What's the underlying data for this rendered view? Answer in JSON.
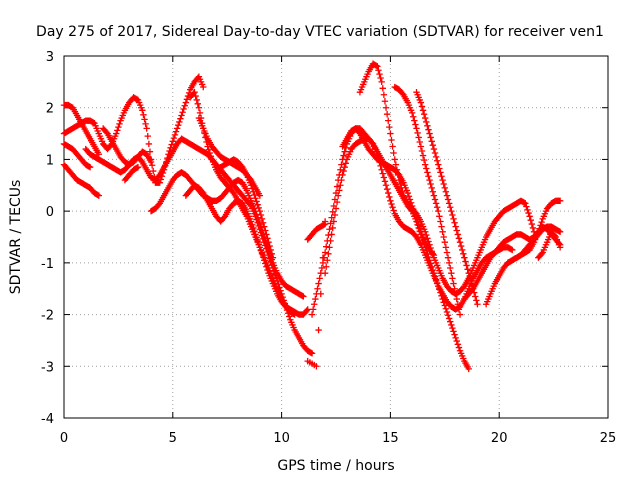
{
  "chart_data": {
    "type": "scatter",
    "title": "Day 275 of 2017, Sidereal Day-to-day VTEC variation (SDTVAR) for receiver ven1",
    "xlabel": "GPS time / hours",
    "ylabel": "SDTVAR / TECUs",
    "xlim": [
      0,
      25
    ],
    "ylim": [
      -4,
      3
    ],
    "xticks": [
      0,
      5,
      10,
      15,
      20,
      25
    ],
    "yticks": [
      -4,
      -3,
      -2,
      -1,
      0,
      1,
      2,
      3
    ],
    "grid": true,
    "marker": "+",
    "color": "#ff0000",
    "series": [
      {
        "x": [
          0.0,
          0.2,
          0.4,
          0.6,
          0.8,
          1.0,
          1.2,
          1.4,
          1.6,
          1.8,
          2.0,
          2.2,
          2.4,
          2.6,
          2.8,
          3.0,
          3.2,
          3.4,
          3.6,
          3.8,
          4.0,
          4.2,
          4.4,
          4.6,
          4.8,
          5.0,
          5.2,
          5.4,
          5.6,
          5.8,
          6.0,
          6.2,
          6.4
        ],
        "y": [
          1.5,
          1.55,
          1.6,
          1.65,
          1.7,
          1.75,
          1.75,
          1.7,
          1.5,
          1.3,
          1.2,
          1.3,
          1.5,
          1.75,
          1.95,
          2.1,
          2.2,
          2.15,
          1.95,
          1.6,
          1.0,
          0.55,
          0.55,
          0.8,
          1.1,
          1.35,
          1.6,
          1.85,
          2.1,
          2.35,
          2.5,
          2.6,
          2.4
        ]
      },
      {
        "x": [
          0.0,
          0.2,
          0.4,
          0.6,
          0.8,
          1.0,
          1.2,
          1.4,
          1.6
        ],
        "y": [
          2.05,
          2.05,
          2.0,
          1.85,
          1.7,
          1.55,
          1.4,
          1.25,
          1.1
        ]
      },
      {
        "x": [
          0.0,
          0.2,
          0.4,
          0.6,
          0.8,
          1.0,
          1.2,
          1.4,
          1.6
        ],
        "y": [
          0.9,
          0.8,
          0.7,
          0.6,
          0.55,
          0.5,
          0.45,
          0.35,
          0.3
        ]
      },
      {
        "x": [
          0.0,
          0.2,
          0.4,
          0.6,
          0.8,
          1.0,
          1.2
        ],
        "y": [
          1.3,
          1.25,
          1.2,
          1.1,
          1.0,
          0.9,
          0.85
        ]
      },
      {
        "x": [
          1.0,
          1.2,
          1.4,
          1.6,
          1.8,
          2.0,
          2.2,
          2.4,
          2.6,
          2.8,
          3.0,
          3.2,
          3.4,
          3.6,
          3.8,
          4.0,
          4.2,
          4.4,
          4.6,
          4.8,
          5.0,
          5.2,
          5.4,
          5.6,
          5.8,
          6.0,
          6.2,
          6.4,
          6.6,
          6.8,
          7.0,
          7.2,
          7.4,
          7.6,
          7.8,
          8.0,
          8.2,
          8.4,
          8.6,
          8.8,
          9.0,
          9.2,
          9.4,
          9.6,
          9.8,
          10.0,
          10.2,
          10.4,
          10.6,
          10.8,
          11.0,
          11.2,
          11.4
        ],
        "y": [
          1.2,
          1.1,
          1.05,
          1.0,
          0.95,
          0.9,
          0.85,
          0.8,
          0.75,
          0.8,
          0.9,
          1.0,
          1.05,
          0.95,
          0.8,
          0.65,
          0.6,
          0.7,
          0.85,
          1.0,
          1.15,
          1.3,
          1.4,
          1.35,
          1.3,
          1.25,
          1.2,
          1.15,
          1.1,
          1.0,
          0.9,
          0.8,
          0.7,
          0.6,
          0.5,
          0.4,
          0.3,
          0.2,
          0.1,
          -0.1,
          -0.35,
          -0.6,
          -0.85,
          -1.1,
          -1.35,
          -1.6,
          -1.85,
          -2.1,
          -2.3,
          -2.45,
          -2.6,
          -2.7,
          -2.75
        ]
      },
      {
        "x": [
          1.8,
          2.0,
          2.2,
          2.4,
          2.6,
          2.8,
          3.0,
          3.2,
          3.4,
          3.6,
          3.8,
          4.0
        ],
        "y": [
          1.6,
          1.5,
          1.35,
          1.2,
          1.05,
          0.95,
          0.9,
          0.95,
          1.05,
          1.15,
          1.1,
          0.95
        ]
      },
      {
        "x": [
          2.8,
          3.0,
          3.2,
          3.4
        ],
        "y": [
          0.6,
          0.7,
          0.8,
          0.85
        ]
      },
      {
        "x": [
          4.0,
          4.2,
          4.4,
          4.6,
          4.8,
          5.0,
          5.2,
          5.4,
          5.6,
          5.8,
          6.0,
          6.2,
          6.4,
          6.6,
          6.8,
          7.0,
          7.2,
          7.4,
          7.6,
          7.8,
          8.0,
          8.2,
          8.4,
          8.6,
          8.8,
          9.0,
          9.2,
          9.4,
          9.6,
          9.8,
          10.0,
          10.2,
          10.4,
          10.6,
          10.8,
          11.0
        ],
        "y": [
          0.0,
          0.05,
          0.15,
          0.3,
          0.45,
          0.6,
          0.7,
          0.75,
          0.7,
          0.6,
          0.5,
          0.4,
          0.3,
          0.25,
          0.2,
          0.2,
          0.25,
          0.35,
          0.45,
          0.55,
          0.6,
          0.55,
          0.4,
          0.2,
          0.0,
          -0.25,
          -0.5,
          -0.75,
          -1.0,
          -1.2,
          -1.35,
          -1.45,
          -1.5,
          -1.55,
          -1.6,
          -1.65
        ]
      },
      {
        "x": [
          5.6,
          5.8,
          6.0,
          6.2,
          6.4,
          6.6,
          6.8,
          7.0,
          7.2,
          7.4,
          7.6,
          7.8,
          8.0,
          8.2,
          8.4,
          8.6,
          8.8,
          9.0,
          9.2,
          9.4,
          9.6,
          9.8,
          10.0,
          10.2,
          10.4,
          10.6,
          10.8,
          11.0,
          11.2
        ],
        "y": [
          0.3,
          0.4,
          0.5,
          0.45,
          0.35,
          0.2,
          0.05,
          -0.1,
          -0.2,
          -0.1,
          0.05,
          0.15,
          0.2,
          0.15,
          0.0,
          -0.2,
          -0.45,
          -0.7,
          -0.95,
          -1.2,
          -1.4,
          -1.6,
          -1.75,
          -1.85,
          -1.9,
          -1.95,
          -2.0,
          -2.0,
          -1.9
        ]
      },
      {
        "x": [
          5.8,
          6.0,
          6.2,
          6.4,
          6.6,
          6.8,
          7.0,
          7.2,
          7.4,
          7.6,
          7.8,
          8.0,
          8.2,
          8.4,
          8.6,
          8.8,
          9.0,
          9.2,
          9.4,
          9.6,
          9.8,
          10.0,
          10.2,
          10.4,
          10.6
        ],
        "y": [
          2.2,
          2.3,
          2.0,
          1.6,
          1.25,
          1.0,
          0.8,
          0.65,
          0.55,
          0.45,
          0.35,
          0.2,
          0.05,
          -0.1,
          -0.3,
          -0.5,
          -0.7,
          -0.9,
          -1.1,
          -1.3,
          -1.5,
          -1.7,
          -1.85,
          -1.95,
          -2.0
        ]
      },
      {
        "x": [
          6.2,
          6.4,
          6.6,
          6.8,
          7.0,
          7.2,
          7.4,
          7.6,
          7.8,
          8.0,
          8.2,
          8.4,
          8.6,
          8.8,
          9.0
        ],
        "y": [
          1.8,
          1.6,
          1.4,
          1.25,
          1.15,
          1.05,
          1.0,
          0.95,
          0.9,
          0.85,
          0.8,
          0.7,
          0.6,
          0.45,
          0.3
        ]
      },
      {
        "x": [
          7.0,
          7.2,
          7.4,
          7.6,
          7.8,
          8.0,
          8.2,
          8.4,
          8.6,
          8.8,
          9.0,
          9.2,
          9.4,
          9.6
        ],
        "y": [
          0.8,
          0.85,
          0.9,
          0.95,
          1.0,
          0.95,
          0.85,
          0.7,
          0.5,
          0.25,
          0.0,
          -0.3,
          -0.6,
          -0.9
        ]
      },
      {
        "x": [
          11.2,
          11.4,
          11.6,
          11.8,
          12.0
        ],
        "y": [
          -0.55,
          -0.45,
          -0.35,
          -0.3,
          -0.25
        ]
      },
      {
        "x": [
          11.4,
          11.6,
          11.8,
          12.0,
          12.2,
          12.4,
          12.6,
          12.8,
          13.0,
          13.2,
          13.4,
          13.6,
          13.8,
          14.0,
          14.2,
          14.4,
          14.6,
          14.8,
          15.0,
          15.2,
          15.4,
          15.6,
          15.8,
          16.0,
          16.2,
          16.4,
          16.6,
          16.8,
          17.0,
          17.2,
          17.4,
          17.6,
          17.8,
          18.0,
          18.2,
          18.4,
          18.6
        ],
        "y": [
          -2.0,
          -1.6,
          -1.2,
          -0.8,
          -0.35,
          0.1,
          0.6,
          1.0,
          1.3,
          1.5,
          1.6,
          1.6,
          1.5,
          1.4,
          1.3,
          1.15,
          1.0,
          0.85,
          0.7,
          0.55,
          0.4,
          0.25,
          0.1,
          0.0,
          -0.2,
          -0.45,
          -0.7,
          -0.95,
          -1.2,
          -1.45,
          -1.7,
          -1.95,
          -2.2,
          -2.45,
          -2.7,
          -2.9,
          -3.05
        ]
      },
      {
        "x": [
          12.0,
          12.2,
          12.4,
          12.6,
          12.8,
          13.0,
          13.2,
          13.4,
          13.6,
          13.8,
          14.0,
          14.2,
          14.4,
          14.6,
          14.8,
          15.0,
          15.2,
          15.4,
          15.6,
          15.8,
          16.0,
          16.2,
          16.4,
          16.6,
          16.8,
          17.0,
          17.2,
          17.4,
          17.6,
          17.8,
          18.0,
          18.2,
          18.4,
          18.6,
          18.8,
          19.0,
          19.2,
          19.4,
          19.6,
          19.8,
          20.0,
          20.2,
          20.4,
          20.6
        ],
        "y": [
          -1.2,
          -0.7,
          -0.2,
          0.3,
          0.7,
          1.0,
          1.2,
          1.3,
          1.35,
          1.4,
          1.4,
          1.3,
          1.1,
          0.8,
          0.5,
          0.2,
          -0.05,
          -0.2,
          -0.3,
          -0.35,
          -0.4,
          -0.5,
          -0.65,
          -0.85,
          -1.05,
          -1.25,
          -1.45,
          -1.6,
          -1.75,
          -1.85,
          -1.9,
          -1.85,
          -1.7,
          -1.5,
          -1.3,
          -1.15,
          -1.0,
          -0.9,
          -0.85,
          -0.8,
          -0.75,
          -0.7,
          -0.7,
          -0.75
        ]
      },
      {
        "x": [
          12.8,
          13.0,
          13.2,
          13.4,
          13.6,
          13.8,
          14.0,
          14.2,
          14.4,
          14.6,
          14.8,
          15.0,
          15.2,
          15.4,
          15.6,
          15.8,
          16.0,
          16.2,
          16.4,
          16.6,
          16.8,
          17.0
        ],
        "y": [
          1.25,
          1.4,
          1.55,
          1.6,
          1.5,
          1.35,
          1.2,
          1.1,
          1.0,
          0.95,
          0.9,
          0.85,
          0.8,
          0.7,
          0.55,
          0.35,
          0.1,
          -0.15,
          -0.4,
          -0.6,
          -0.75,
          -0.85
        ]
      },
      {
        "x": [
          13.6,
          13.8,
          14.0,
          14.2,
          14.4,
          14.6,
          14.8,
          15.0,
          15.2,
          15.4,
          15.6,
          15.8,
          16.0,
          16.2,
          16.4,
          16.6,
          16.8,
          17.0,
          17.2,
          17.4,
          17.6,
          17.8,
          18.0,
          18.2,
          18.4,
          18.6,
          18.8,
          19.0,
          19.2,
          19.4,
          19.6,
          19.8,
          20.0,
          20.2,
          20.4,
          20.6,
          20.8,
          21.0,
          21.2,
          21.4,
          21.6
        ],
        "y": [
          2.3,
          2.5,
          2.7,
          2.85,
          2.8,
          2.5,
          2.0,
          1.5,
          1.0,
          0.6,
          0.3,
          0.15,
          0.05,
          -0.05,
          -0.2,
          -0.4,
          -0.65,
          -0.9,
          -1.1,
          -1.3,
          -1.45,
          -1.55,
          -1.6,
          -1.55,
          -1.45,
          -1.3,
          -1.1,
          -0.9,
          -0.7,
          -0.5,
          -0.35,
          -0.2,
          -0.1,
          0.0,
          0.05,
          0.1,
          0.15,
          0.2,
          0.15,
          -0.1,
          -0.4
        ]
      },
      {
        "x": [
          15.2,
          15.4,
          15.6,
          15.8,
          16.0,
          16.2,
          16.4,
          16.6,
          16.8,
          17.0,
          17.2,
          17.4,
          17.6,
          17.8,
          18.0,
          18.2
        ],
        "y": [
          2.4,
          2.35,
          2.25,
          2.1,
          1.9,
          1.6,
          1.25,
          0.9,
          0.6,
          0.3,
          0.0,
          -0.4,
          -0.8,
          -1.2,
          -1.6,
          -2.0
        ]
      },
      {
        "x": [
          16.2,
          16.4,
          16.6,
          16.8,
          17.0,
          17.2,
          17.4,
          17.6,
          17.8,
          18.0,
          18.2,
          18.4,
          18.6,
          18.8,
          19.0
        ],
        "y": [
          2.3,
          2.1,
          1.8,
          1.5,
          1.2,
          0.9,
          0.6,
          0.3,
          0.0,
          -0.3,
          -0.6,
          -0.9,
          -1.2,
          -1.5,
          -1.8
        ]
      },
      {
        "x": [
          18.4,
          18.6,
          18.8,
          19.0,
          19.2,
          19.4,
          19.6,
          19.8,
          20.0,
          20.2,
          20.4,
          20.6,
          20.8,
          21.0,
          21.2,
          21.4,
          21.6,
          21.8,
          22.0,
          22.2,
          22.4,
          22.6,
          22.8
        ],
        "y": [
          -1.7,
          -1.6,
          -1.5,
          -1.35,
          -1.2,
          -1.05,
          -0.9,
          -0.8,
          -0.7,
          -0.6,
          -0.55,
          -0.5,
          -0.45,
          -0.45,
          -0.5,
          -0.55,
          -0.5,
          -0.4,
          -0.3,
          -0.35,
          -0.45,
          -0.55,
          -0.65
        ]
      },
      {
        "x": [
          19.4,
          19.6,
          19.8,
          20.0,
          20.2,
          20.4,
          20.6,
          20.8,
          21.0,
          21.2,
          21.4,
          21.6,
          21.8,
          22.0,
          22.2,
          22.4,
          22.6,
          22.8
        ],
        "y": [
          -1.8,
          -1.6,
          -1.4,
          -1.25,
          -1.1,
          -1.0,
          -0.95,
          -0.9,
          -0.85,
          -0.8,
          -0.75,
          -0.6,
          -0.4,
          -0.15,
          0.05,
          0.15,
          0.2,
          0.2
        ]
      },
      {
        "x": [
          20.4,
          20.6,
          20.8,
          21.0,
          21.2,
          21.4,
          21.6,
          21.8,
          22.0,
          22.2,
          22.4,
          22.6,
          22.8
        ],
        "y": [
          -1.0,
          -0.95,
          -0.9,
          -0.85,
          -0.75,
          -0.65,
          -0.55,
          -0.45,
          -0.35,
          -0.3,
          -0.3,
          -0.35,
          -0.4
        ]
      },
      {
        "x": [
          21.8,
          22.0,
          22.2,
          22.4,
          22.6,
          22.8
        ],
        "y": [
          -0.9,
          -0.8,
          -0.6,
          -0.4,
          -0.5,
          -0.7
        ]
      },
      {
        "x": [
          11.2,
          11.6,
          12.0
        ],
        "y": [
          -2.9,
          -3.0,
          -0.2
        ]
      }
    ]
  }
}
